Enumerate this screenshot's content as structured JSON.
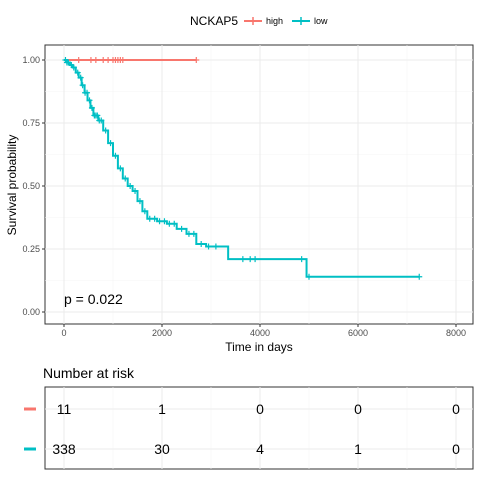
{
  "chart_data": [
    {
      "type": "line",
      "subtype": "kaplan-meier",
      "xlabel": "Time in days",
      "ylabel": "Survival probability",
      "xlim": [
        0,
        8000
      ],
      "ylim": [
        0,
        1
      ],
      "x_ticks": [
        0,
        2000,
        4000,
        6000,
        8000
      ],
      "y_ticks": [
        0.0,
        0.25,
        0.5,
        0.75,
        1.0
      ],
      "y_tick_labels": [
        "0.00",
        "0.25",
        "0.50",
        "0.75",
        "1.00"
      ],
      "grid": true,
      "legend": {
        "title": "NCKAP5",
        "placement": "top",
        "entries": [
          "high",
          "low"
        ]
      },
      "annotation": "p = 0.022",
      "series": [
        {
          "name": "high",
          "color": "#F8766D",
          "step_points": [
            [
              0,
              1.0
            ],
            [
              2700,
              1.0
            ]
          ],
          "censor_times": [
            300,
            550,
            650,
            800,
            900,
            1000,
            1050,
            1100,
            1150,
            1200,
            2700
          ]
        },
        {
          "name": "low",
          "color": "#00BFC4",
          "step_points": [
            [
              0,
              1.0
            ],
            [
              60,
              0.99
            ],
            [
              120,
              0.98
            ],
            [
              180,
              0.97
            ],
            [
              240,
              0.95
            ],
            [
              300,
              0.93
            ],
            [
              360,
              0.9
            ],
            [
              420,
              0.87
            ],
            [
              480,
              0.84
            ],
            [
              540,
              0.81
            ],
            [
              600,
              0.78
            ],
            [
              700,
              0.76
            ],
            [
              800,
              0.72
            ],
            [
              900,
              0.67
            ],
            [
              1000,
              0.62
            ],
            [
              1100,
              0.57
            ],
            [
              1200,
              0.53
            ],
            [
              1300,
              0.5
            ],
            [
              1400,
              0.48
            ],
            [
              1500,
              0.44
            ],
            [
              1600,
              0.4
            ],
            [
              1700,
              0.37
            ],
            [
              1900,
              0.36
            ],
            [
              2100,
              0.35
            ],
            [
              2300,
              0.33
            ],
            [
              2500,
              0.31
            ],
            [
              2700,
              0.27
            ],
            [
              2900,
              0.26
            ],
            [
              3350,
              0.21
            ],
            [
              4950,
              0.14
            ],
            [
              7250,
              0.14
            ]
          ],
          "censor_times": [
            30,
            60,
            90,
            150,
            200,
            280,
            340,
            380,
            430,
            470,
            520,
            570,
            620,
            650,
            680,
            720,
            760,
            850,
            950,
            1050,
            1150,
            1250,
            1350,
            1450,
            1550,
            1650,
            1750,
            1850,
            1950,
            2050,
            2150,
            2250,
            2400,
            2550,
            2650,
            2800,
            2950,
            3100,
            3650,
            3800,
            3900,
            4850,
            5000,
            7250
          ]
        }
      ]
    },
    {
      "type": "table",
      "title": "Number at risk",
      "time_points": [
        0,
        2000,
        4000,
        6000,
        8000
      ],
      "rows": [
        {
          "name": "high",
          "color": "#F8766D",
          "values": [
            "11",
            "1",
            "0",
            "0",
            "0"
          ]
        },
        {
          "name": "low",
          "color": "#00BFC4",
          "values": [
            "338",
            "30",
            "4",
            "1",
            "0"
          ]
        }
      ]
    }
  ]
}
